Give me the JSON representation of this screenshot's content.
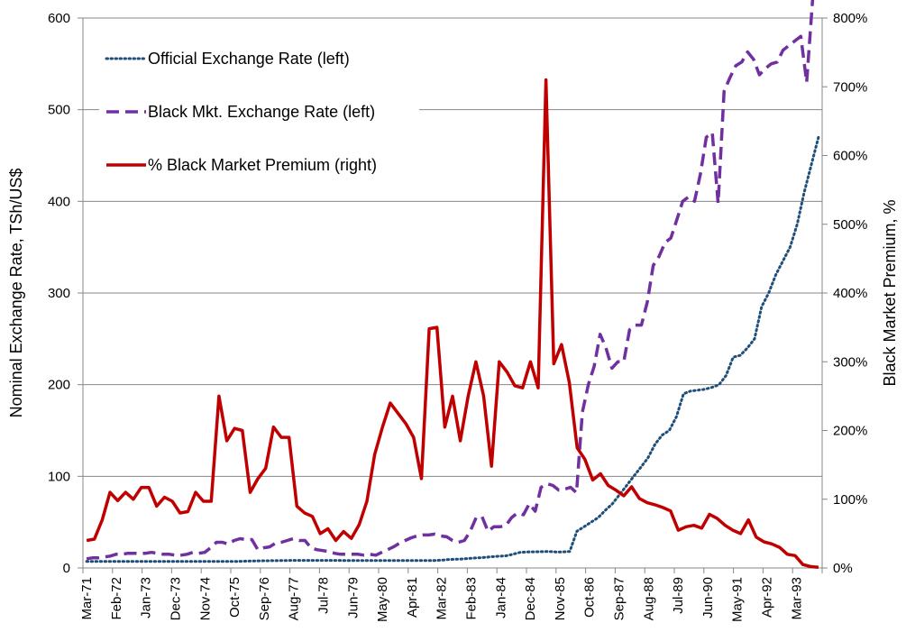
{
  "chart_data": {
    "type": "line",
    "title": "",
    "ylabel": "Nominal Exchange Rate, TSh/US$",
    "y2label": "Black Market Premium, %",
    "ylim": [
      0,
      600
    ],
    "y2lim": [
      0,
      800
    ],
    "yticks": [
      "0",
      "100",
      "200",
      "300",
      "400",
      "500",
      "600"
    ],
    "y2ticks": [
      "0%",
      "100%",
      "200%",
      "300%",
      "400%",
      "500%",
      "600%",
      "700%",
      "800%"
    ],
    "grid": true,
    "legend_position": "top-left",
    "x_labels": [
      "Mar-71",
      "Feb-72",
      "Jan-73",
      "Dec-73",
      "Nov-74",
      "Oct-75",
      "Sep-76",
      "Aug-77",
      "Jul-78",
      "Jun-79",
      "May-80",
      "Apr-81",
      "Mar-82",
      "Feb-83",
      "Jan-84",
      "Dec-84",
      "Nov-85",
      "Oct-86",
      "Sep-87",
      "Aug-88",
      "Jul-89",
      "Jun-90",
      "May-91",
      "Apr-92",
      "Mar-93"
    ],
    "x_label_period_index": 0,
    "series": [
      {
        "name": "Official Exchange Rate (left)",
        "axis": "left",
        "style": "dotted",
        "color": "#1F4E79",
        "values": [
          7.1,
          7.1,
          7.1,
          7.1,
          7.1,
          7.1,
          7.1,
          7.1,
          7.1,
          7.1,
          7.1,
          7.1,
          7.1,
          7.1,
          7.1,
          7.1,
          7.1,
          7.1,
          7.1,
          7.1,
          7.1,
          7.1,
          7.4,
          7.6,
          7.7,
          7.9,
          8,
          8.1,
          8.2,
          8.3,
          8.3,
          8.3,
          8.3,
          8.3,
          8.3,
          8.3,
          8.2,
          8.1,
          8.1,
          8.1,
          8.1,
          8.1,
          8.1,
          8.1,
          8.1,
          8.1,
          8.2,
          8.2,
          8.2,
          8.2,
          8.6,
          9.2,
          9.5,
          9.8,
          10.5,
          11,
          11.5,
          12.3,
          12.8,
          13.3,
          15,
          17,
          17.5,
          17.6,
          17.8,
          18,
          17.5,
          17.5,
          18,
          40,
          45,
          50,
          55,
          63,
          70,
          80,
          90,
          100,
          110,
          120,
          135,
          145,
          150,
          165,
          190,
          193,
          194,
          195,
          197,
          200,
          210,
          230,
          232,
          240,
          250,
          285,
          300,
          320,
          335,
          350,
          375,
          410,
          440,
          470
        ]
      },
      {
        "name": "Black Mkt. Exchange Rate (left)",
        "axis": "left",
        "style": "dashed",
        "color": "#7030A0",
        "values": [
          10,
          11,
          11,
          12,
          13,
          15,
          15,
          16,
          16,
          16,
          16,
          17,
          16,
          15,
          15,
          14,
          14,
          15,
          17,
          16,
          17,
          22,
          28,
          28,
          26,
          30,
          32,
          31,
          31,
          20,
          22,
          23,
          27,
          28,
          30,
          32,
          30,
          30,
          22,
          20,
          19,
          18,
          16,
          15,
          15,
          15,
          15,
          14,
          15,
          14,
          17,
          20,
          23,
          27,
          30,
          33,
          35,
          36,
          36,
          37,
          35,
          34,
          30,
          28,
          30,
          40,
          55,
          56,
          40,
          45,
          45,
          46,
          55,
          60,
          58,
          70,
          62,
          88,
          92,
          90,
          85,
          86,
          88,
          82,
          170,
          200,
          220,
          255,
          240,
          218,
          225,
          225,
          260,
          265,
          265,
          290,
          330,
          340,
          355,
          360,
          380,
          400,
          405,
          400,
          430,
          470,
          475,
          398,
          520,
          535,
          548,
          552,
          563,
          555,
          538,
          545,
          550,
          552,
          565,
          570,
          575,
          580,
          530,
          620,
          645
        ]
      },
      {
        "name": "% Black Market Premium (right)",
        "axis": "right",
        "style": "solid",
        "color": "#C00000",
        "values": [
          40,
          42,
          70,
          110,
          98,
          110,
          100,
          117,
          117,
          90,
          103,
          97,
          80,
          82,
          110,
          97,
          97,
          250,
          185,
          203,
          200,
          110,
          130,
          145,
          205,
          190,
          190,
          90,
          80,
          75,
          50,
          57,
          40,
          53,
          43,
          63,
          97,
          165,
          205,
          240,
          225,
          210,
          190,
          130,
          348,
          350,
          205,
          250,
          185,
          250,
          300,
          250,
          148,
          300,
          285,
          265,
          262,
          300,
          262,
          710,
          297,
          325,
          270,
          175,
          158,
          128,
          137,
          120,
          113,
          105,
          118,
          101,
          95,
          92,
          88,
          83,
          55,
          60,
          62,
          58,
          78,
          72,
          62,
          55,
          50,
          70,
          45,
          38,
          35,
          30,
          20,
          18,
          5,
          2,
          1
        ]
      }
    ]
  }
}
